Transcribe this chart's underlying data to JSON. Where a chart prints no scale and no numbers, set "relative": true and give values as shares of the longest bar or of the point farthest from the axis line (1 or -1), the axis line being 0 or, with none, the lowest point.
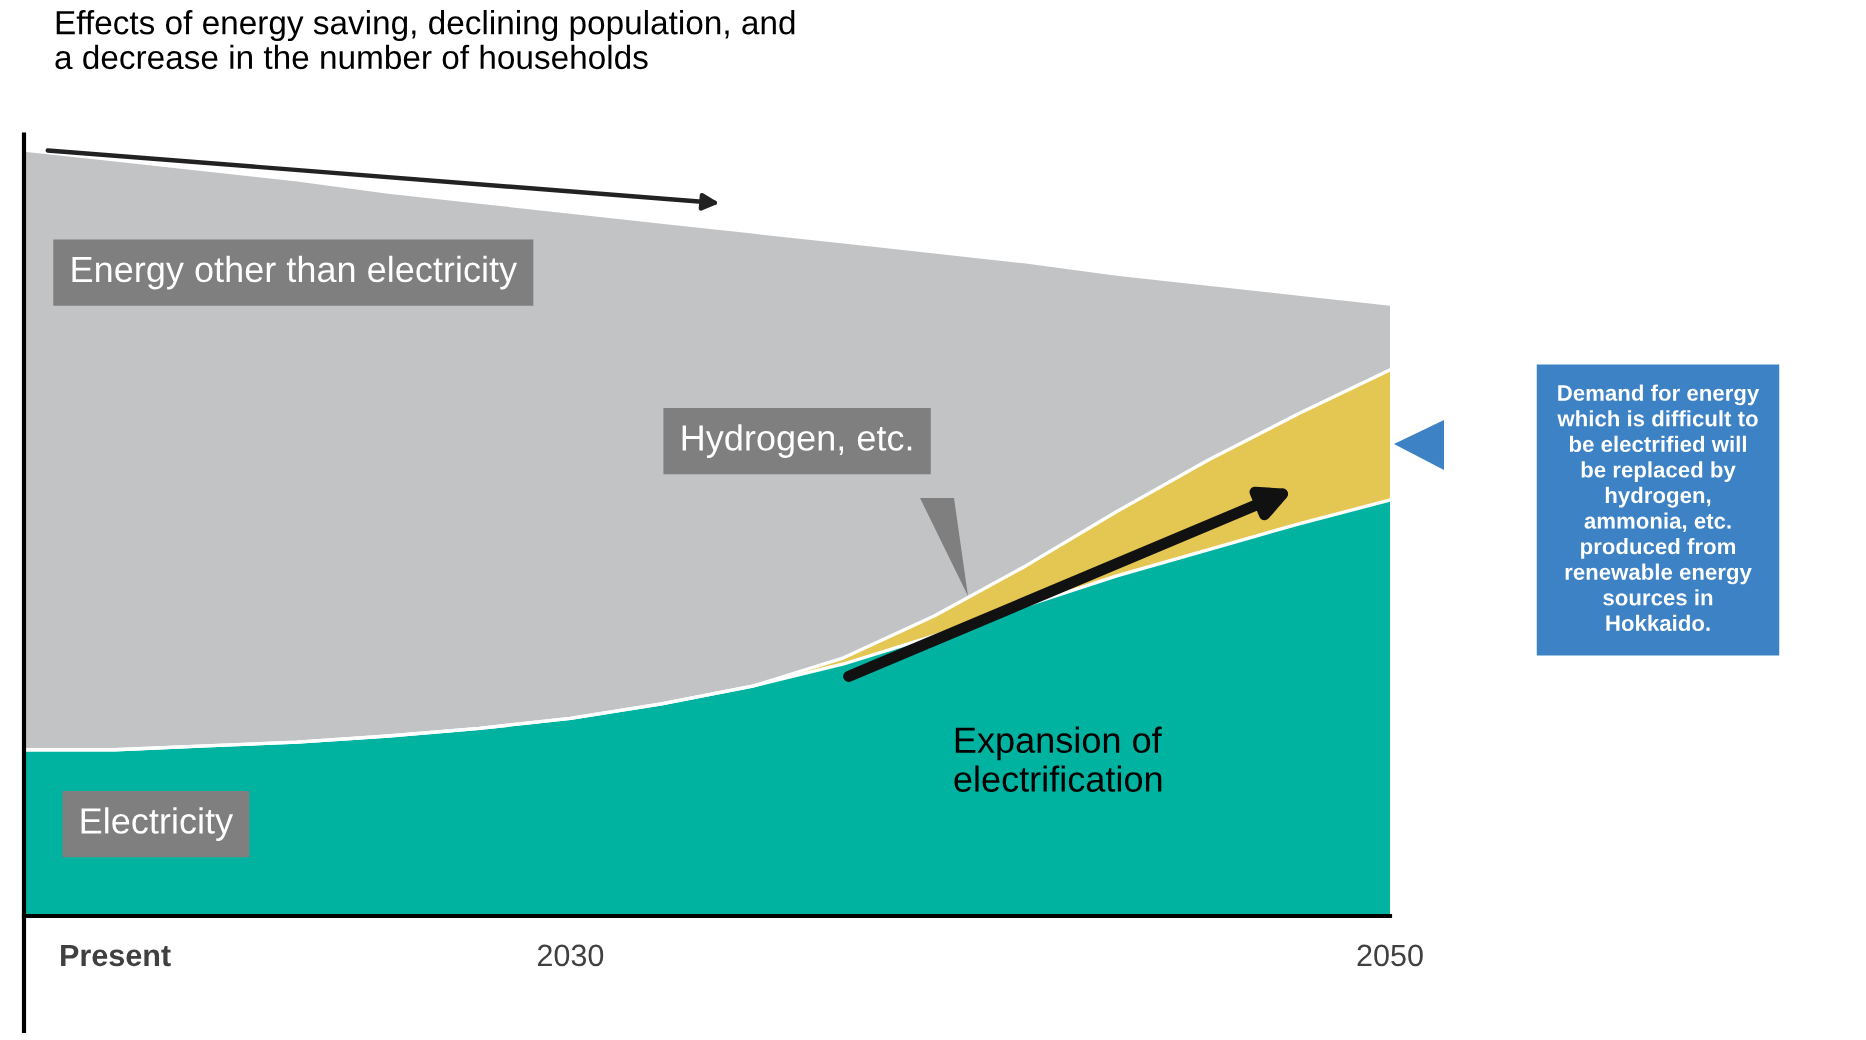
{
  "chart_data": {
    "type": "area",
    "stacked": true,
    "relative": true,
    "title": "Effects of energy saving, declining population, and\na decrease in the number of households",
    "categories": [
      null,
      "Present",
      null,
      null,
      null,
      null,
      "2030",
      null,
      null,
      null,
      null,
      null,
      null,
      null,
      null,
      "2050"
    ],
    "series": [
      {
        "name": "Electricity",
        "color": "#00b3a0",
        "values": [
          0.217,
          0.217,
          0.222,
          0.227,
          0.235,
          0.245,
          0.258,
          0.277,
          0.3,
          0.329,
          0.366,
          0.405,
          0.444,
          0.478,
          0.512,
          0.543
        ]
      },
      {
        "name": "Hydrogen, etc.",
        "color": "#e3c752",
        "values": [
          0,
          0,
          0,
          0,
          0,
          0,
          0,
          0,
          0,
          0.008,
          0.026,
          0.052,
          0.084,
          0.117,
          0.144,
          0.17
        ]
      },
      {
        "name": "Energy other than electricity",
        "color": "#c1c3c5",
        "values": [
          0.783,
          0.77,
          0.752,
          0.734,
          0.71,
          0.687,
          0.661,
          0.629,
          0.593,
          0.543,
          0.475,
          0.397,
          0.31,
          0.23,
          0.156,
          0.086
        ]
      }
    ],
    "annotations": [
      "Expansion of\nelectrification",
      "Demand for energy\nwhich is difficult to\nbe electrified will\nbe replaced by\nhydrogen,\nammonia, etc.\nproduced from\nrenewable energy\nsources in\nHokkaido."
    ],
    "legend": false,
    "grid": false
  }
}
